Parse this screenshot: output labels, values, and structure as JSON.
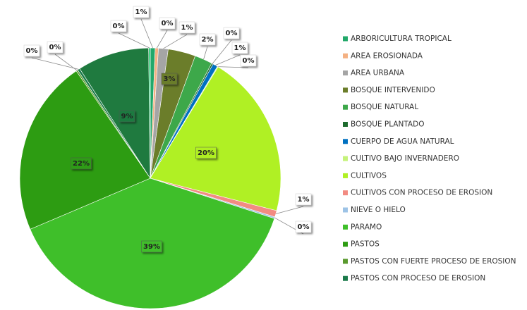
{
  "chart_data": {
    "type": "pie",
    "categories": [
      "ARBORICULTURA TROPICAL",
      "AREA EROSIONADA",
      "AREA URBANA",
      "BOSQUE INTERVENIDO",
      "BOSQUE NATURAL",
      "BOSQUE PLANTADO",
      "CUERPO DE AGUA NATURAL",
      "CULTIVO BAJO INVERNADERO",
      "CULTIVOS",
      "CULTIVOS CON PROCESO DE EROSION",
      "NIEVE O HIELO",
      "PARAMO",
      "PASTOS",
      "PASTOS CON FUERTE PROCESO DE EROSION",
      "PASTOS CON PROCESO DE EROSION",
      null,
      null
    ],
    "values": [
      0.6,
      0.4,
      1.2,
      3.4,
      2.2,
      0.2,
      0.6,
      0.1,
      20.3,
      0.8,
      0.2,
      38.6,
      21.8,
      0.2,
      0.3,
      8.9,
      0.2
    ],
    "value_labels": [
      "1%",
      "0%",
      "1%",
      "3%",
      "2%",
      "0%",
      "1%",
      "0%",
      "20%",
      "1%",
      "0%",
      "39%",
      "22%",
      "0%",
      "0%",
      "9%",
      "0%"
    ],
    "colors": [
      "#22a86a",
      "#f4b183",
      "#a5a5a5",
      "#6b7d2a",
      "#3da84a",
      "#1e6b2e",
      "#0070c0",
      "#c5f27a",
      "#b0f024",
      "#f28b82",
      "#9dc3e6",
      "#3fbf2a",
      "#2d9c12",
      "#5a9a2e",
      "#1a7a4a",
      "#1f7a3f",
      "#22cc6e"
    ],
    "legend": "right"
  }
}
